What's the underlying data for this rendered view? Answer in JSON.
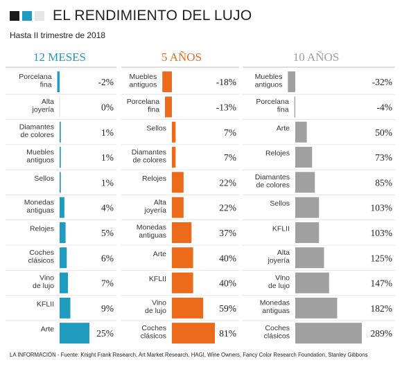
{
  "header": {
    "title": "EL RENDIMIENTO DEL LUJO",
    "subtitle": "Hasta II trimestre de 2018",
    "squares": [
      "#1a1a1a",
      "#1f9bbf",
      "#e6e6e6"
    ]
  },
  "footer": {
    "source": "LA INFORMACIÓN - Fuente: Knight Frank Research, Art Market Research, HAGI, Wine Owners, Fancy Color Research Foundation, Stanley Gibbons"
  },
  "chart_data": [
    {
      "type": "bar",
      "title": "12 MESES",
      "color": "#1f9bbf",
      "categories": [
        "Porcelana fina",
        "Alta joyería",
        "Diamantes de colores",
        "Muebles antiguos",
        "Sellos",
        "Monedas antiguas",
        "Relojes",
        "Coches clásicos",
        "Vino de lujo",
        "KFLII",
        "Arte"
      ],
      "values": [
        -2,
        0,
        1,
        1,
        1,
        4,
        5,
        6,
        7,
        9,
        25
      ],
      "labels": [
        "-2%",
        "0%",
        "1%",
        "1%",
        "1%",
        "4%",
        "5%",
        "6%",
        "7%",
        "9%",
        "25%"
      ]
    },
    {
      "type": "bar",
      "title": "5 AÑOS",
      "color": "#ec6a1c",
      "categories": [
        "Muebles antiguos",
        "Porcelana fina",
        "Sellos",
        "Diamantes de colores",
        "Relojes",
        "Alta joyería",
        "Monedas antiguas",
        "Arte",
        "KFLII",
        "Vino de lujo",
        "Coches clásicos"
      ],
      "values": [
        -18,
        -13,
        7,
        7,
        22,
        22,
        37,
        40,
        40,
        59,
        81
      ],
      "labels": [
        "-18%",
        "-13%",
        "7%",
        "7%",
        "22%",
        "22%",
        "37%",
        "40%",
        "40%",
        "59%",
        "81%"
      ]
    },
    {
      "type": "bar",
      "title": "10 AÑOS",
      "color": "#a0a0a0",
      "categories": [
        "Muebles antiguos",
        "Porcelana fina",
        "Arte",
        "Relojes",
        "Diamantes de colores",
        "Sellos",
        "KFLII",
        "Alta joyería",
        "Vino de lujo",
        "Monedas antiguas",
        "Coches clásicos"
      ],
      "values": [
        -32,
        -4,
        50,
        73,
        85,
        103,
        103,
        125,
        147,
        182,
        289
      ],
      "labels": [
        "-32%",
        "-4%",
        "50%",
        "73%",
        "85%",
        "103%",
        "103%",
        "125%",
        "147%",
        "182%",
        "289%"
      ]
    }
  ]
}
